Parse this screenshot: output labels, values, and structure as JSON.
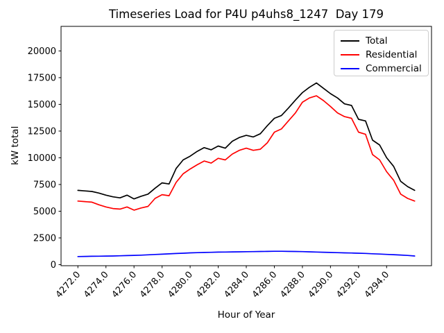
{
  "chart_data": {
    "type": "line",
    "title": "Timeseries Load for P4U p4uhs8_1247  Day 179",
    "xlabel": "Hour of Year",
    "ylabel": "kW total",
    "grid": false,
    "legend_position": "upper right",
    "xlim": [
      4270.8,
      4297.2
    ],
    "ylim": [
      -100,
      22300
    ],
    "x_ticks": [
      4272,
      4274,
      4276,
      4278,
      4280,
      4282,
      4284,
      4286,
      4288,
      4290,
      4292,
      4294
    ],
    "x_tick_labels": [
      "4272.0",
      "4274.0",
      "4276.0",
      "4278.0",
      "4280.0",
      "4282.0",
      "4284.0",
      "4286.0",
      "4288.0",
      "4290.0",
      "4292.0",
      "4294.0"
    ],
    "y_ticks": [
      0,
      2500,
      5000,
      7500,
      10000,
      12500,
      15000,
      17500,
      20000
    ],
    "y_tick_labels": [
      "0",
      "2500",
      "5000",
      "7500",
      "10000",
      "12500",
      "15000",
      "17500",
      "20000"
    ],
    "axis_color": "#000000",
    "legend_border_color": "#cccccc",
    "x": [
      4272.0,
      4272.5,
      4273.0,
      4273.5,
      4274.0,
      4274.5,
      4275.0,
      4275.5,
      4276.0,
      4276.5,
      4277.0,
      4277.5,
      4278.0,
      4278.5,
      4279.0,
      4279.5,
      4280.0,
      4280.5,
      4281.0,
      4281.5,
      4282.0,
      4282.5,
      4283.0,
      4283.5,
      4284.0,
      4284.5,
      4285.0,
      4285.5,
      4286.0,
      4286.5,
      4287.0,
      4287.5,
      4288.0,
      4288.5,
      4289.0,
      4289.5,
      4290.0,
      4290.5,
      4291.0,
      4291.5,
      4292.0,
      4292.5,
      4293.0,
      4293.5,
      4294.0,
      4294.5,
      4295.0,
      4295.5,
      4296.0
    ],
    "series": [
      {
        "name": "Total",
        "color": "#000000",
        "values": [
          6950,
          6900,
          6850,
          6700,
          6500,
          6350,
          6250,
          6500,
          6150,
          6400,
          6600,
          7150,
          7650,
          7550,
          9000,
          9800,
          10150,
          10600,
          10950,
          10750,
          11100,
          10900,
          11550,
          11900,
          12100,
          11950,
          12250,
          13000,
          13700,
          13950,
          14650,
          15400,
          16100,
          16600,
          17000,
          16500,
          16000,
          15600,
          15050,
          14900,
          13600,
          13450,
          11650,
          11200,
          10000,
          9200,
          7800,
          7300,
          6950
        ]
      },
      {
        "name": "Residential",
        "color": "#ff0000",
        "values": [
          5950,
          5900,
          5850,
          5600,
          5400,
          5250,
          5200,
          5400,
          5100,
          5300,
          5450,
          6200,
          6550,
          6450,
          7700,
          8500,
          8950,
          9350,
          9700,
          9500,
          9950,
          9800,
          10350,
          10700,
          10900,
          10700,
          10800,
          11400,
          12400,
          12700,
          13450,
          14200,
          15200,
          15600,
          15800,
          15350,
          14800,
          14200,
          13850,
          13700,
          12400,
          12200,
          10300,
          9800,
          8700,
          7900,
          6600,
          6200,
          5950
        ]
      },
      {
        "name": "Commercial",
        "color": "#0000ff",
        "values": [
          760,
          770,
          780,
          790,
          800,
          810,
          830,
          850,
          870,
          890,
          920,
          950,
          980,
          1010,
          1040,
          1070,
          1100,
          1120,
          1140,
          1150,
          1170,
          1180,
          1190,
          1200,
          1210,
          1220,
          1230,
          1240,
          1250,
          1250,
          1240,
          1230,
          1220,
          1200,
          1180,
          1160,
          1140,
          1120,
          1100,
          1090,
          1070,
          1050,
          1020,
          990,
          960,
          930,
          900,
          860,
          810
        ]
      }
    ]
  }
}
